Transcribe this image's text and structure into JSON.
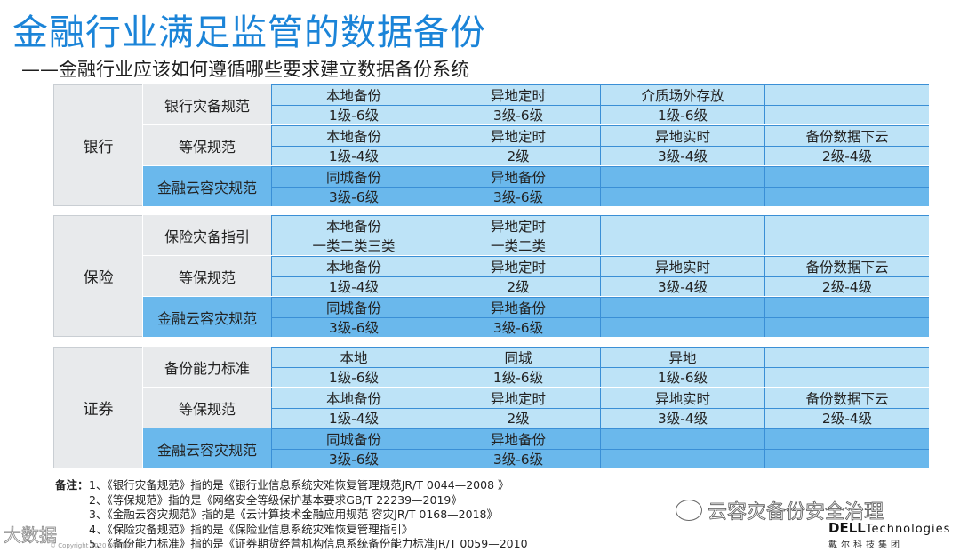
{
  "title": "金融行业满足监管的数据备份",
  "subtitle": "——金融行业应该如何遵循哪些要求建立数据备份系统",
  "groups": [
    {
      "name": "银行",
      "standards": [
        {
          "name": "银行灾备规范",
          "cloud": false,
          "rows": [
            [
              "本地备份",
              "异地定时",
              "介质场外存放",
              ""
            ],
            [
              "1级-6级",
              "3级-6级",
              "1级-6级",
              ""
            ]
          ]
        },
        {
          "name": "等保规范",
          "cloud": false,
          "rows": [
            [
              "本地备份",
              "异地定时",
              "异地实时",
              "备份数据下云"
            ],
            [
              "1级-4级",
              "2级",
              "3级-4级",
              "2级-4级"
            ]
          ]
        },
        {
          "name": "金融云容灾规范",
          "cloud": true,
          "rows": [
            [
              "同城备份",
              "异地备份",
              "",
              ""
            ],
            [
              "3级-6级",
              "3级-6级",
              "",
              ""
            ]
          ]
        }
      ]
    },
    {
      "name": "保险",
      "standards": [
        {
          "name": "保险灾备指引",
          "cloud": false,
          "rows": [
            [
              "本地备份",
              "异地定时",
              "",
              ""
            ],
            [
              "一类二类三类",
              "一类二类",
              "",
              ""
            ]
          ]
        },
        {
          "name": "等保规范",
          "cloud": false,
          "rows": [
            [
              "本地备份",
              "异地定时",
              "异地实时",
              "备份数据下云"
            ],
            [
              "1级-4级",
              "2级",
              "3级-4级",
              "2级-4级"
            ]
          ]
        },
        {
          "name": "金融云容灾规范",
          "cloud": true,
          "rows": [
            [
              "同城备份",
              "异地备份",
              "",
              ""
            ],
            [
              "3级-6级",
              "3级-6级",
              "",
              ""
            ]
          ]
        }
      ]
    },
    {
      "name": "证券",
      "standards": [
        {
          "name": "备份能力标准",
          "cloud": false,
          "rows": [
            [
              "本地",
              "同城",
              "异地",
              ""
            ],
            [
              "1级-6级",
              "1级-6级",
              "1级-6级",
              ""
            ]
          ]
        },
        {
          "name": "等保规范",
          "cloud": false,
          "rows": [
            [
              "本地备份",
              "异地定时",
              "异地实时",
              "备份数据下云"
            ],
            [
              "1级-4级",
              "2级",
              "3级-4级",
              "2级-4级"
            ]
          ]
        },
        {
          "name": "金融云容灾规范",
          "cloud": true,
          "rows": [
            [
              "同城备份",
              "异地备份",
              "",
              ""
            ],
            [
              "3级-6级",
              "3级-6级",
              "",
              ""
            ]
          ]
        }
      ]
    }
  ],
  "notes": {
    "lead": "备注：",
    "items": [
      "1、《银行灾备规范》指的是《银行业信息系统灾难恢复管理规范JR/T 0044—2008 》",
      "2、《等保规范》指的是《网络安全等级保护基本要求GB/T 22239—2019》",
      "3、《金融云容灾规范》指的是《云计算技术金融应用规范  容灾JR/T 0168—2018》",
      "4、《保险灾备规范》指的是《保险业信息系统灾难恢复管理指引》",
      "5、《备份能力标准》指的是《证券期货经营机构信息系统备份能力标准JR/T 0059—2010"
    ]
  },
  "watermark": "云容灾备份安全治理",
  "watermark2": "大数据",
  "brand": {
    "dell": "DELL",
    "tech": "Technologies",
    "cn": "戴尔科技集团"
  },
  "copyright": "© Copyright 2020 Dell Inc."
}
